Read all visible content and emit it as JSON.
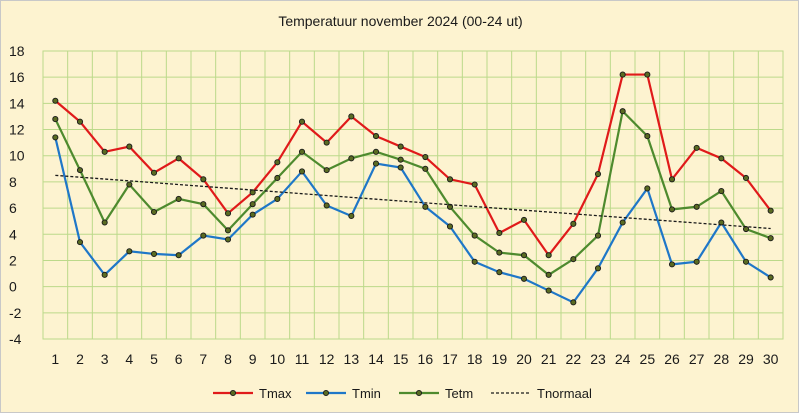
{
  "chart_data": {
    "type": "line",
    "title": "Temperatuur november 2024 (00-24 ut)",
    "xlabel": "",
    "ylabel": "",
    "x": [
      1,
      2,
      3,
      4,
      5,
      6,
      7,
      8,
      9,
      10,
      11,
      12,
      13,
      14,
      15,
      16,
      17,
      18,
      19,
      20,
      21,
      22,
      23,
      24,
      25,
      26,
      27,
      28,
      29,
      30
    ],
    "ylim": [
      -4,
      18
    ],
    "yticks": [
      -4,
      -2,
      0,
      2,
      4,
      6,
      8,
      10,
      12,
      14,
      16,
      18
    ],
    "grid": true,
    "legend_position": "bottom",
    "series": [
      {
        "name": "Tmax",
        "color": "#e01a1a",
        "style": "solid-markers",
        "values": [
          14.2,
          12.6,
          10.3,
          10.7,
          8.7,
          9.8,
          8.2,
          5.6,
          7.2,
          9.5,
          12.6,
          11.0,
          13.0,
          11.5,
          10.7,
          9.9,
          8.2,
          7.8,
          4.1,
          5.1,
          2.4,
          4.8,
          8.6,
          16.2,
          16.2,
          8.2,
          10.6,
          9.8,
          8.3,
          5.8
        ]
      },
      {
        "name": "Tmin",
        "color": "#1f77c8",
        "style": "solid-markers",
        "values": [
          11.4,
          3.4,
          0.9,
          2.7,
          2.5,
          2.4,
          3.9,
          3.6,
          5.5,
          6.7,
          8.8,
          6.2,
          5.4,
          9.4,
          9.1,
          6.1,
          4.6,
          1.9,
          1.1,
          0.6,
          -0.3,
          -1.2,
          1.4,
          4.9,
          7.5,
          1.7,
          1.9,
          4.9,
          1.9,
          0.7
        ]
      },
      {
        "name": "Tetm",
        "color": "#4e8a2e",
        "style": "solid-markers",
        "values": [
          12.8,
          8.9,
          4.9,
          7.8,
          5.7,
          6.7,
          6.3,
          4.3,
          6.3,
          8.3,
          10.3,
          8.9,
          9.8,
          10.3,
          9.7,
          9.0,
          6.1,
          3.9,
          2.6,
          2.4,
          0.9,
          2.1,
          3.9,
          13.4,
          11.5,
          5.9,
          6.1,
          7.3,
          4.4,
          3.7
        ]
      },
      {
        "name": "Tnormaal",
        "color": "#1a1a1a",
        "style": "dashed",
        "values": [
          8.5,
          8.36,
          8.22,
          8.08,
          7.94,
          7.8,
          7.66,
          7.52,
          7.38,
          7.24,
          7.1,
          6.96,
          6.82,
          6.68,
          6.54,
          6.4,
          6.26,
          6.12,
          5.98,
          5.84,
          5.7,
          5.56,
          5.42,
          5.28,
          5.14,
          5.0,
          4.86,
          4.72,
          4.58,
          4.44
        ]
      }
    ]
  }
}
